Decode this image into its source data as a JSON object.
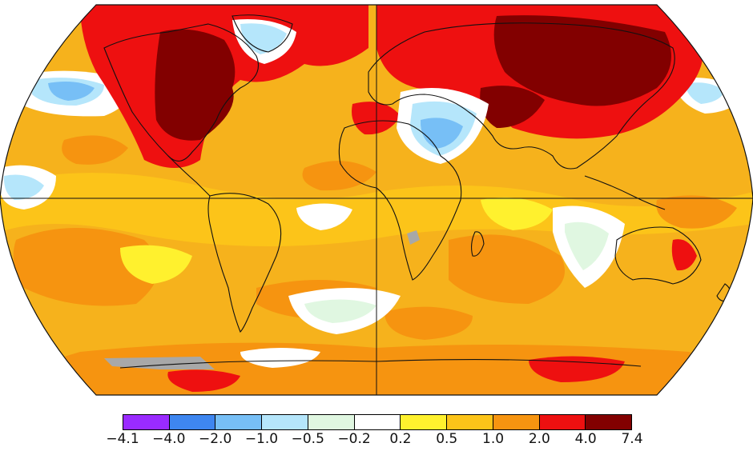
{
  "map": {
    "projection": "Robinson",
    "colors": {
      "land_outline": "#111111",
      "no_data": "#a8a8a8",
      "ocean_background": "#f6b21c"
    }
  },
  "legend": {
    "bins": [
      {
        "color": "#9a2bff"
      },
      {
        "color": "#3e86f0"
      },
      {
        "color": "#77bff6"
      },
      {
        "color": "#b5e6fb"
      },
      {
        "color": "#e0f7e1"
      },
      {
        "color": "#ffffff"
      },
      {
        "color": "#fff12e"
      },
      {
        "color": "#fcc419"
      },
      {
        "color": "#f69410"
      },
      {
        "color": "#ee1010"
      },
      {
        "color": "#820000"
      }
    ],
    "tick_labels": [
      "−4.1",
      "−4.0",
      "−2.0",
      "−1.0",
      "−0.5",
      "−0.2",
      "0.2",
      "0.5",
      "1.0",
      "2.0",
      "4.0",
      "7.4"
    ]
  }
}
